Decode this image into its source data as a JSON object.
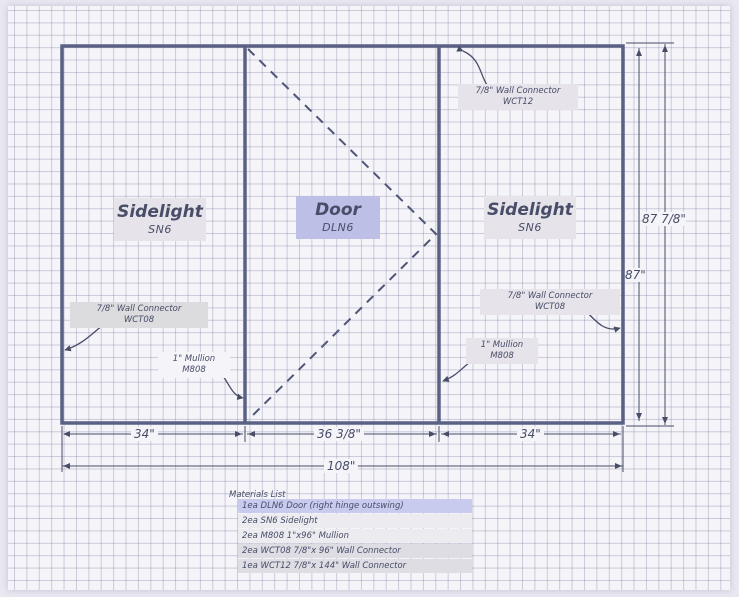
{
  "panels": {
    "left": {
      "name": "Sidelight",
      "code": "SN6"
    },
    "door": {
      "name": "Door",
      "code": "DLN6"
    },
    "right": {
      "name": "Sidelight",
      "code": "SN6"
    }
  },
  "callouts": {
    "top_right": {
      "line1": "7/8\" Wall Connector",
      "line2": "WCT12"
    },
    "left_wall": {
      "line1": "7/8\" Wall Connector",
      "line2": "WCT08"
    },
    "right_wall": {
      "line1": "7/8\" Wall Connector",
      "line2": "WCT08"
    },
    "left_mullion": {
      "line1": "1\" Mullion",
      "line2": "M808"
    },
    "right_mullion": {
      "line1": "1\" Mullion",
      "line2": "M808"
    }
  },
  "dimensions": {
    "left_width": "34\"",
    "door_width": "36 3/8\"",
    "right_width": "34\"",
    "total_width": "108\"",
    "outer_height": "87 7/8\"",
    "inner_height": "87\""
  },
  "materials": {
    "title": "Materials List",
    "items": [
      "1ea DLN6 Door (right hinge outswing)",
      "2ea SN6 Sidelight",
      "2ea M808 1\"x96\" Mullion",
      "2ea WCT08 7/8\"x 96\" Wall Connector",
      "1ea WCT12 7/8\"x 144\" Wall Connector"
    ]
  },
  "colors": {
    "frame": "#5a6184",
    "door_label_bg": "#bdbfe6",
    "label_bg": "#e6e3ea",
    "highlight_row": "#c9cbee"
  }
}
